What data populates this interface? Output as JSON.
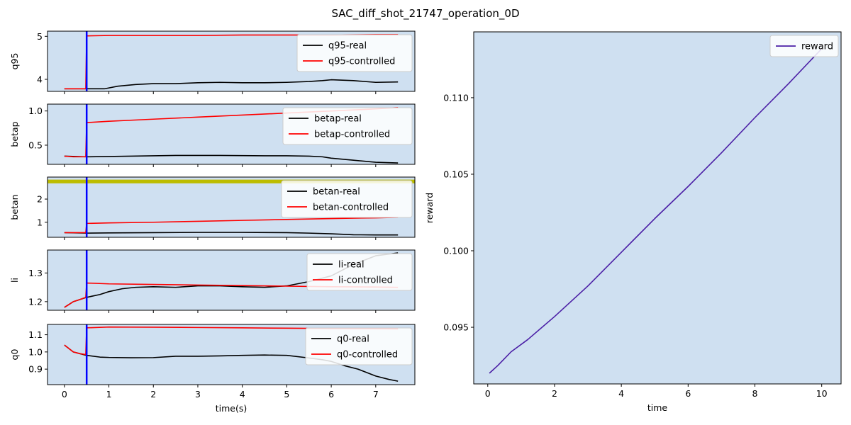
{
  "figure_title": "SAC_diff_shot_21747_operation_0D",
  "colors": {
    "panel_bg": "#cfe0f1",
    "real": "#000000",
    "controlled": "#ff0000",
    "vline": "#0000ff",
    "band": "#bcbc00",
    "reward": "#4b1fa6"
  },
  "chart_data": [
    {
      "type": "line",
      "ylabel": "q95",
      "xlim": [
        -0.38,
        7.88
      ],
      "ylim": [
        3.72,
        5.12
      ],
      "yticks": [
        4,
        5
      ],
      "ytick_labels": [
        "4",
        "5"
      ],
      "vline_x": 0.5,
      "legend_loc": "upper-right",
      "series": [
        {
          "name": "q95-real",
          "color": "#000000",
          "x": [
            0,
            0.5,
            0.9,
            1.2,
            1.6,
            2.0,
            2.5,
            3.0,
            3.5,
            4.0,
            4.5,
            5.0,
            5.5,
            5.8,
            6.0,
            6.5,
            7.0,
            7.5
          ],
          "y": [
            3.78,
            3.78,
            3.78,
            3.84,
            3.88,
            3.9,
            3.9,
            3.92,
            3.93,
            3.92,
            3.92,
            3.93,
            3.95,
            3.97,
            3.99,
            3.97,
            3.93,
            3.94
          ]
        },
        {
          "name": "q95-controlled",
          "color": "#ff0000",
          "x": [
            0,
            0.48,
            0.5,
            1.0,
            2.0,
            3.0,
            4.0,
            5.0,
            6.0,
            7.0,
            7.5
          ],
          "y": [
            3.78,
            3.78,
            5.01,
            5.02,
            5.02,
            5.02,
            5.03,
            5.03,
            5.03,
            5.04,
            5.04
          ]
        }
      ]
    },
    {
      "type": "line",
      "ylabel": "betap",
      "xlim": [
        -0.38,
        7.88
      ],
      "ylim": [
        0.22,
        1.1
      ],
      "yticks": [
        0.5,
        1.0
      ],
      "ytick_labels": [
        "0.5",
        "1.0"
      ],
      "vline_x": 0.5,
      "legend_loc": "upper-right",
      "series": [
        {
          "name": "betap-real",
          "color": "#000000",
          "x": [
            0,
            0.5,
            1.0,
            1.5,
            2.0,
            2.5,
            3.0,
            3.5,
            4.0,
            4.5,
            5.0,
            5.5,
            5.8,
            6.0,
            6.5,
            7.0,
            7.5
          ],
          "y": [
            0.34,
            0.33,
            0.335,
            0.34,
            0.345,
            0.35,
            0.35,
            0.35,
            0.348,
            0.345,
            0.345,
            0.34,
            0.33,
            0.31,
            0.28,
            0.25,
            0.24
          ]
        },
        {
          "name": "betap-controlled",
          "color": "#ff0000",
          "x": [
            0,
            0.2,
            0.48,
            0.5,
            1.0,
            2.0,
            3.0,
            4.0,
            5.0,
            6.0,
            7.0,
            7.5
          ],
          "y": [
            0.34,
            0.33,
            0.33,
            0.83,
            0.85,
            0.88,
            0.91,
            0.94,
            0.97,
            1.0,
            1.03,
            1.05
          ]
        }
      ]
    },
    {
      "type": "line",
      "ylabel": "betan",
      "xlim": [
        -0.38,
        7.88
      ],
      "ylim": [
        0.35,
        2.95
      ],
      "yticks": [
        1,
        2
      ],
      "ytick_labels": [
        "1",
        "2"
      ],
      "vline_x": 0.5,
      "band_y": [
        2.68,
        2.84
      ],
      "legend_loc": "upper-right",
      "series": [
        {
          "name": "betan-real",
          "color": "#000000",
          "x": [
            0,
            0.5,
            1.0,
            2.0,
            3.0,
            4.0,
            5.0,
            5.5,
            6.0,
            6.5,
            7.0,
            7.5
          ],
          "y": [
            0.55,
            0.53,
            0.54,
            0.55,
            0.56,
            0.56,
            0.55,
            0.53,
            0.5,
            0.46,
            0.45,
            0.45
          ]
        },
        {
          "name": "betan-controlled",
          "color": "#ff0000",
          "x": [
            0,
            0.2,
            0.48,
            0.5,
            1.0,
            2.0,
            3.0,
            4.0,
            5.0,
            6.0,
            7.0,
            7.5
          ],
          "y": [
            0.55,
            0.55,
            0.55,
            0.95,
            0.97,
            1.0,
            1.04,
            1.08,
            1.12,
            1.16,
            1.19,
            1.21
          ]
        }
      ]
    },
    {
      "type": "line",
      "ylabel": "li",
      "xlim": [
        -0.38,
        7.88
      ],
      "ylim": [
        1.17,
        1.38
      ],
      "yticks": [
        1.2,
        1.3
      ],
      "ytick_labels": [
        "1.2",
        "1.3"
      ],
      "vline_x": 0.5,
      "legend_loc": "upper-right",
      "series": [
        {
          "name": "li-real",
          "color": "#000000",
          "x": [
            0,
            0.1,
            0.2,
            0.3,
            0.5,
            0.8,
            1.0,
            1.3,
            1.6,
            2.0,
            2.5,
            3.0,
            3.5,
            4.0,
            4.5,
            5.0,
            5.5,
            6.0,
            6.5,
            7.0,
            7.5
          ],
          "y": [
            1.18,
            1.19,
            1.2,
            1.205,
            1.215,
            1.225,
            1.235,
            1.245,
            1.25,
            1.252,
            1.25,
            1.255,
            1.255,
            1.252,
            1.25,
            1.255,
            1.27,
            1.29,
            1.33,
            1.36,
            1.37
          ]
        },
        {
          "name": "li-controlled",
          "color": "#ff0000",
          "x": [
            0,
            0.1,
            0.2,
            0.3,
            0.48,
            0.5,
            1.0,
            2.0,
            3.0,
            4.0,
            5.0,
            6.0,
            7.0,
            7.5
          ],
          "y": [
            1.18,
            1.19,
            1.2,
            1.205,
            1.215,
            1.265,
            1.262,
            1.26,
            1.258,
            1.256,
            1.254,
            1.252,
            1.251,
            1.25
          ]
        }
      ]
    },
    {
      "type": "line",
      "ylabel": "q0",
      "xlim": [
        -0.38,
        7.88
      ],
      "ylim": [
        0.81,
        1.16
      ],
      "yticks": [
        0.9,
        1.0,
        1.1
      ],
      "ytick_labels": [
        "0.9",
        "1.0",
        "1.1"
      ],
      "vline_x": 0.5,
      "xticks": [
        0,
        1,
        2,
        3,
        4,
        5,
        6,
        7
      ],
      "xtick_labels": [
        "0",
        "1",
        "2",
        "3",
        "4",
        "5",
        "6",
        "7"
      ],
      "xlabel": "time(s)",
      "legend_loc": "upper-right",
      "series": [
        {
          "name": "q0-real",
          "color": "#000000",
          "x": [
            0,
            0.1,
            0.2,
            0.35,
            0.5,
            0.8,
            1.0,
            1.5,
            2.0,
            2.5,
            3.0,
            3.5,
            4.0,
            4.5,
            5.0,
            5.5,
            5.8,
            6.0,
            6.3,
            6.6,
            7.0,
            7.3,
            7.5
          ],
          "y": [
            1.04,
            1.02,
            1.0,
            0.99,
            0.98,
            0.97,
            0.968,
            0.966,
            0.967,
            0.975,
            0.975,
            0.977,
            0.98,
            0.982,
            0.98,
            0.965,
            0.955,
            0.945,
            0.92,
            0.9,
            0.86,
            0.84,
            0.83
          ]
        },
        {
          "name": "q0-controlled",
          "color": "#ff0000",
          "x": [
            0,
            0.1,
            0.2,
            0.35,
            0.48,
            0.5,
            1.0,
            2.0,
            3.0,
            4.0,
            5.0,
            6.0,
            7.0,
            7.5
          ],
          "y": [
            1.04,
            1.02,
            1.0,
            0.99,
            0.985,
            1.14,
            1.145,
            1.144,
            1.142,
            1.14,
            1.138,
            1.136,
            1.135,
            1.134
          ]
        }
      ]
    },
    {
      "type": "line",
      "ylabel": "reward",
      "xlabel": "time",
      "xlim": [
        -0.42,
        10.58
      ],
      "ylim": [
        0.0913,
        0.1143
      ],
      "yticks": [
        0.095,
        0.1,
        0.105,
        0.11
      ],
      "ytick_labels": [
        "0.095",
        "0.100",
        "0.105",
        "0.110"
      ],
      "xticks": [
        0,
        2,
        4,
        6,
        8,
        10
      ],
      "xtick_labels": [
        "0",
        "2",
        "4",
        "6",
        "8",
        "10"
      ],
      "legend_loc": "upper-right",
      "series": [
        {
          "name": "reward",
          "color": "#4b1fa6",
          "x": [
            0.05,
            0.3,
            0.7,
            1.2,
            2.0,
            3.0,
            4.0,
            5.0,
            6.0,
            7.0,
            8.0,
            9.0,
            10.0
          ],
          "y": [
            0.092,
            0.0925,
            0.0934,
            0.0942,
            0.0957,
            0.0977,
            0.0999,
            0.1021,
            0.1042,
            0.1064,
            0.1087,
            0.1109,
            0.1132
          ]
        }
      ]
    }
  ]
}
